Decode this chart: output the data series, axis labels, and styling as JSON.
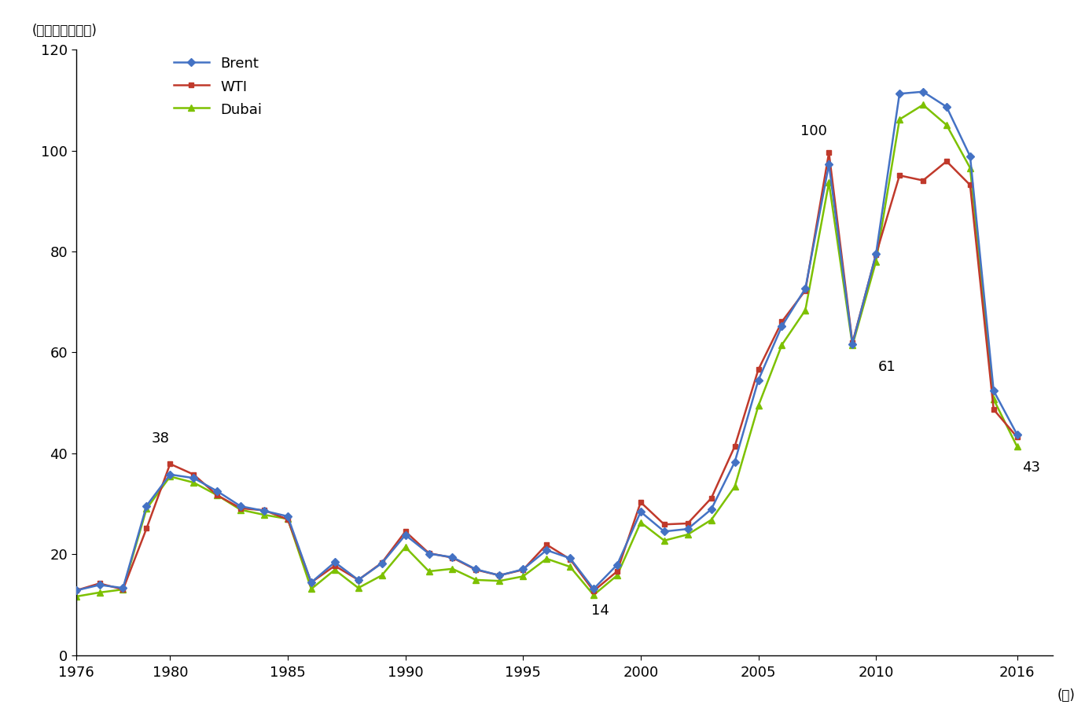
{
  "years": [
    1976,
    1977,
    1978,
    1979,
    1980,
    1981,
    1982,
    1983,
    1984,
    1985,
    1986,
    1987,
    1988,
    1989,
    1990,
    1991,
    1992,
    1993,
    1994,
    1995,
    1996,
    1997,
    1998,
    1999,
    2000,
    2001,
    2002,
    2003,
    2004,
    2005,
    2006,
    2007,
    2008,
    2009,
    2010,
    2011,
    2012,
    2013,
    2014,
    2015,
    2016
  ],
  "brent": [
    12.8,
    13.9,
    13.3,
    29.6,
    35.8,
    35.1,
    32.5,
    29.5,
    28.6,
    27.5,
    14.4,
    18.4,
    14.9,
    18.2,
    23.8,
    20.1,
    19.4,
    17.0,
    15.8,
    17.0,
    20.8,
    19.2,
    13.1,
    17.9,
    28.4,
    24.5,
    25.0,
    28.9,
    38.3,
    54.5,
    65.2,
    72.7,
    97.3,
    61.7,
    79.5,
    111.3,
    111.7,
    108.7,
    98.9,
    52.4,
    43.7
  ],
  "wti": [
    12.8,
    14.2,
    13.0,
    25.1,
    37.9,
    35.8,
    31.7,
    29.1,
    28.7,
    26.9,
    14.4,
    17.7,
    14.9,
    18.3,
    24.5,
    20.2,
    19.3,
    16.9,
    15.8,
    16.9,
    21.9,
    19.0,
    12.7,
    16.6,
    30.3,
    25.9,
    26.1,
    31.1,
    41.4,
    56.6,
    66.1,
    72.3,
    99.6,
    61.9,
    79.4,
    95.1,
    94.1,
    97.9,
    93.2,
    48.7,
    43.2
  ],
  "dubai": [
    11.6,
    12.4,
    13.0,
    29.0,
    35.4,
    34.2,
    31.7,
    28.8,
    27.8,
    27.0,
    13.1,
    16.9,
    13.3,
    15.8,
    21.4,
    16.6,
    17.1,
    14.9,
    14.7,
    15.6,
    19.1,
    17.5,
    11.9,
    15.8,
    26.3,
    22.7,
    23.9,
    26.8,
    33.4,
    49.4,
    61.5,
    68.4,
    93.7,
    61.4,
    78.0,
    106.2,
    109.1,
    105.1,
    96.6,
    50.7,
    41.3
  ],
  "brent_color": "#4472C4",
  "wti_color": "#C0392B",
  "dubai_color": "#7DC100",
  "ylabel": "(米ドル／バレル)",
  "xlabel": "(年)",
  "ylim": [
    0,
    120
  ],
  "yticks": [
    0,
    20,
    40,
    60,
    80,
    100,
    120
  ],
  "xticks": [
    1976,
    1980,
    1985,
    1990,
    1995,
    2000,
    2005,
    2010,
    2016
  ],
  "background_color": "#ffffff",
  "legend_labels": [
    "Brent",
    "WTI",
    "Dubai"
  ]
}
